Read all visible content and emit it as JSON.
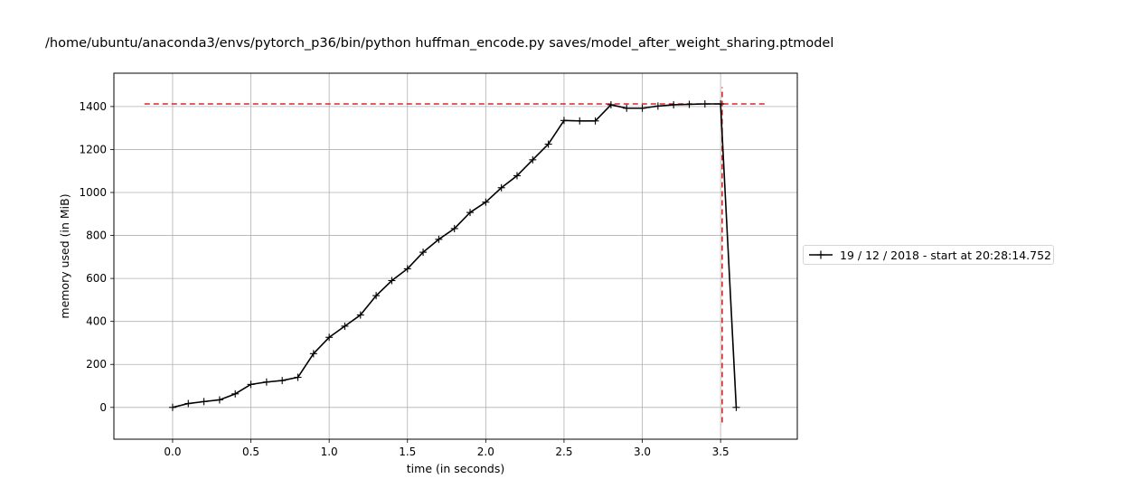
{
  "chart_data": {
    "type": "line",
    "title": "/home/ubuntu/anaconda3/envs/pytorch_p36/bin/python huffman_encode.py saves/model_after_weight_sharing.ptmodel",
    "xlabel": "time (in seconds)",
    "ylabel": "memory used (in MiB)",
    "xlim": [
      -0.375,
      3.99
    ],
    "ylim": [
      -148,
      1555
    ],
    "xticks": [
      0.0,
      0.5,
      1.0,
      1.5,
      2.0,
      2.5,
      3.0,
      3.5
    ],
    "xtick_labels": [
      "0.0",
      "0.5",
      "1.0",
      "1.5",
      "2.0",
      "2.5",
      "3.0",
      "3.5"
    ],
    "yticks": [
      0,
      200,
      400,
      600,
      800,
      1000,
      1200,
      1400
    ],
    "ytick_labels": [
      "0",
      "200",
      "400",
      "600",
      "800",
      "1000",
      "1200",
      "1400"
    ],
    "grid": true,
    "legend_placement": "outside right",
    "series": [
      {
        "name": "19 / 12 / 2018 - start at 20:28:14.752",
        "color": "#000000",
        "marker": "plus",
        "x": [
          0.0,
          0.1,
          0.2,
          0.3,
          0.4,
          0.5,
          0.6,
          0.7,
          0.8,
          0.9,
          1.0,
          1.1,
          1.2,
          1.3,
          1.4,
          1.5,
          1.6,
          1.7,
          1.8,
          1.9,
          2.0,
          2.1,
          2.2,
          2.3,
          2.4,
          2.5,
          2.6,
          2.7,
          2.8,
          2.9,
          3.0,
          3.1,
          3.2,
          3.3,
          3.4,
          3.5,
          3.6
        ],
        "y": [
          0,
          18,
          27,
          35,
          63,
          107,
          118,
          125,
          140,
          250,
          326,
          378,
          430,
          520,
          590,
          645,
          722,
          782,
          832,
          907,
          955,
          1022,
          1078,
          1152,
          1225,
          1335,
          1333,
          1333,
          1408,
          1392,
          1392,
          1402,
          1408,
          1410,
          1412,
          1412,
          0
        ]
      }
    ],
    "reference_lines": [
      {
        "orientation": "horizontal",
        "value": 1412,
        "from": -0.18,
        "to": 3.8,
        "color": "#d62728",
        "style": "dashed"
      },
      {
        "orientation": "vertical",
        "value": 3.51,
        "from": -70,
        "to": 1490,
        "color": "#d62728",
        "style": "dashed"
      }
    ]
  }
}
